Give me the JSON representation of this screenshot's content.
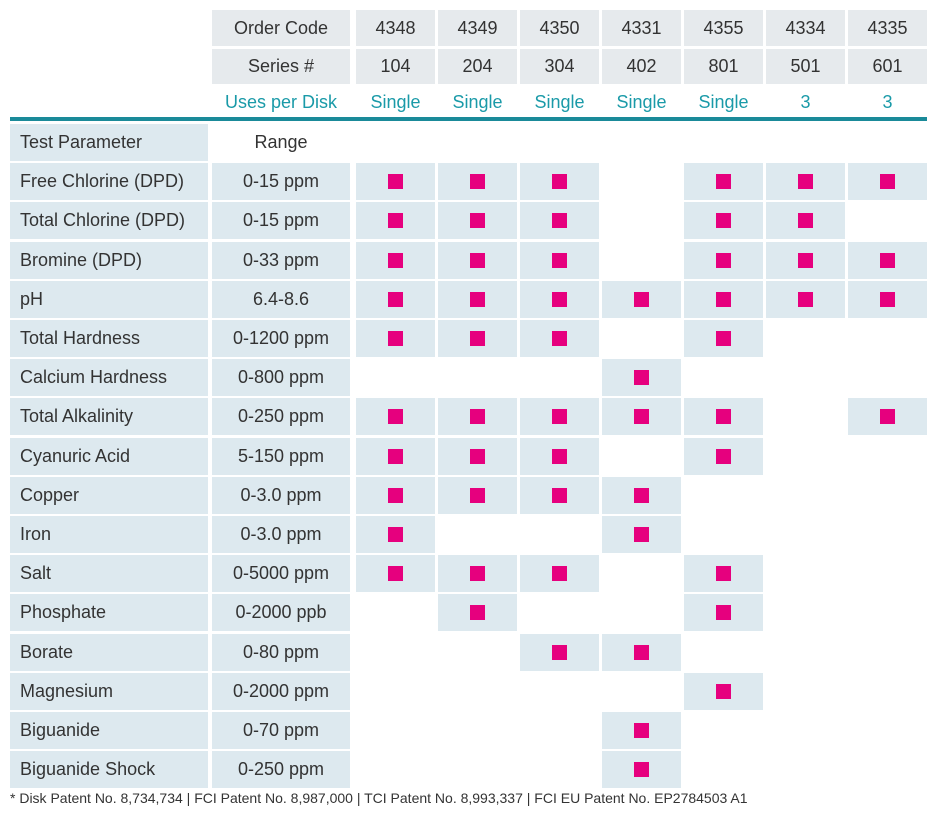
{
  "header": {
    "order_code_label": "Order Code",
    "series_label": "Series #",
    "uses_label": "Uses per Disk",
    "columns": [
      {
        "order_code": "4348",
        "series": "104",
        "uses": "Single"
      },
      {
        "order_code": "4349",
        "series": "204",
        "uses": "Single"
      },
      {
        "order_code": "4350",
        "series": "304",
        "uses": "Single"
      },
      {
        "order_code": "4331",
        "series": "402",
        "uses": "Single"
      },
      {
        "order_code": "4355",
        "series": "801",
        "uses": "Single"
      },
      {
        "order_code": "4334",
        "series": "501",
        "uses": "3"
      },
      {
        "order_code": "4335",
        "series": "601",
        "uses": "3"
      }
    ]
  },
  "table": {
    "columns": [
      "Test Parameter",
      "Range"
    ],
    "rows": [
      {
        "parameter": "Free Chlorine (DPD)",
        "range": "0-15 ppm",
        "marks": [
          true,
          true,
          true,
          false,
          true,
          true,
          true
        ]
      },
      {
        "parameter": "Total Chlorine (DPD)",
        "range": "0-15 ppm",
        "marks": [
          true,
          true,
          true,
          false,
          true,
          true,
          false
        ]
      },
      {
        "parameter": "Bromine (DPD)",
        "range": "0-33 ppm",
        "marks": [
          true,
          true,
          true,
          false,
          true,
          true,
          true
        ]
      },
      {
        "parameter": "pH",
        "range": "6.4-8.6",
        "marks": [
          true,
          true,
          true,
          true,
          true,
          true,
          true
        ]
      },
      {
        "parameter": "Total Hardness",
        "range": "0-1200 ppm",
        "marks": [
          true,
          true,
          true,
          false,
          true,
          false,
          false
        ]
      },
      {
        "parameter": "Calcium Hardness",
        "range": "0-800 ppm",
        "marks": [
          false,
          false,
          false,
          true,
          false,
          false,
          false
        ]
      },
      {
        "parameter": "Total Alkalinity",
        "range": "0-250 ppm",
        "marks": [
          true,
          true,
          true,
          true,
          true,
          false,
          true
        ]
      },
      {
        "parameter": "Cyanuric Acid",
        "range": "5-150 ppm",
        "marks": [
          true,
          true,
          true,
          false,
          true,
          false,
          false
        ]
      },
      {
        "parameter": "Copper",
        "range": "0-3.0 ppm",
        "marks": [
          true,
          true,
          true,
          true,
          false,
          false,
          false
        ]
      },
      {
        "parameter": "Iron",
        "range": "0-3.0 ppm",
        "marks": [
          true,
          false,
          false,
          true,
          false,
          false,
          false
        ]
      },
      {
        "parameter": "Salt",
        "range": "0-5000 ppm",
        "marks": [
          true,
          true,
          true,
          false,
          true,
          false,
          false
        ]
      },
      {
        "parameter": "Phosphate",
        "range": "0-2000 ppb",
        "marks": [
          false,
          true,
          false,
          false,
          true,
          false,
          false
        ]
      },
      {
        "parameter": "Borate",
        "range": "0-80 ppm",
        "marks": [
          false,
          false,
          true,
          true,
          false,
          false,
          false
        ]
      },
      {
        "parameter": "Magnesium",
        "range": "0-2000 ppm",
        "marks": [
          false,
          false,
          false,
          false,
          true,
          false,
          false
        ]
      },
      {
        "parameter": "Biguanide",
        "range": "0-70 ppm",
        "marks": [
          false,
          false,
          false,
          true,
          false,
          false,
          false
        ]
      },
      {
        "parameter": "Biguanide Shock",
        "range": "0-250 ppm",
        "marks": [
          false,
          false,
          false,
          true,
          false,
          false,
          false
        ]
      }
    ]
  },
  "footer": "* Disk Patent No. 8,734,734 | FCI Patent No. 8,987,000 | TCI Patent No. 8,993,337 | FCI EU Patent No. EP2784503 A1"
}
